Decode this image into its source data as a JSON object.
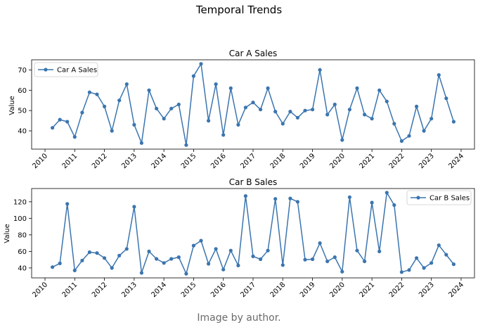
{
  "suptitle": "Temporal Trends",
  "caption": "Image by author.",
  "colors": {
    "line": "#3b75af",
    "axis": "#000000"
  },
  "chart_data": [
    {
      "type": "line",
      "title": "Car A Sales",
      "xlabel": "",
      "ylabel": "Value",
      "legend": "top-left",
      "grid": false,
      "x_ticks": [
        2010,
        2011,
        2012,
        2013,
        2014,
        2015,
        2016,
        2017,
        2018,
        2019,
        2020,
        2021,
        2022,
        2023,
        2024
      ],
      "y_ticks": [
        40,
        50,
        60,
        70
      ],
      "xlim": [
        2009.55,
        2024.45
      ],
      "ylim": [
        31,
        75
      ],
      "series": [
        {
          "name": "Car A Sales",
          "x": [
            2010.25,
            2010.5,
            2010.75,
            2011.0,
            2011.25,
            2011.5,
            2011.75,
            2012.0,
            2012.25,
            2012.5,
            2012.75,
            2013.0,
            2013.25,
            2013.5,
            2013.75,
            2014.0,
            2014.25,
            2014.5,
            2014.75,
            2015.0,
            2015.25,
            2015.5,
            2015.75,
            2016.0,
            2016.25,
            2016.5,
            2016.75,
            2017.0,
            2017.25,
            2017.5,
            2017.75,
            2018.0,
            2018.25,
            2018.5,
            2018.75,
            2019.0,
            2019.25,
            2019.5,
            2019.75,
            2020.0,
            2020.25,
            2020.5,
            2020.75,
            2021.0,
            2021.25,
            2021.5,
            2021.75,
            2022.0,
            2022.25,
            2022.5,
            2022.75,
            2023.0,
            2023.25,
            2023.5,
            2023.75
          ],
          "values": [
            41.5,
            45.5,
            44.5,
            37,
            49,
            59,
            58,
            52,
            40,
            55,
            63,
            43,
            34,
            60,
            51,
            46,
            51,
            53,
            33,
            67,
            73,
            45,
            63,
            38,
            61,
            43,
            51.5,
            54,
            50.5,
            61,
            49.5,
            43.5,
            49.5,
            46.5,
            50,
            50.5,
            70,
            48,
            53,
            35.5,
            50.5,
            61,
            48,
            46,
            60,
            54.5,
            43.5,
            35,
            37.5,
            52,
            40,
            46,
            67.5,
            56,
            44.5
          ]
        }
      ]
    },
    {
      "type": "line",
      "title": "Car B Sales",
      "xlabel": "",
      "ylabel": "Value",
      "legend": "top-right",
      "grid": false,
      "x_ticks": [
        2010,
        2011,
        2012,
        2013,
        2014,
        2015,
        2016,
        2017,
        2018,
        2019,
        2020,
        2021,
        2022,
        2023,
        2024
      ],
      "y_ticks": [
        40,
        60,
        80,
        100,
        120
      ],
      "xlim": [
        2009.55,
        2024.45
      ],
      "ylim": [
        28,
        136
      ],
      "series": [
        {
          "name": "Car B Sales",
          "x": [
            2010.25,
            2010.5,
            2010.75,
            2011.0,
            2011.25,
            2011.5,
            2011.75,
            2012.0,
            2012.25,
            2012.5,
            2012.75,
            2013.0,
            2013.25,
            2013.5,
            2013.75,
            2014.0,
            2014.25,
            2014.5,
            2014.75,
            2015.0,
            2015.25,
            2015.5,
            2015.75,
            2016.0,
            2016.25,
            2016.5,
            2016.75,
            2017.0,
            2017.25,
            2017.5,
            2017.75,
            2018.0,
            2018.25,
            2018.5,
            2018.75,
            2019.0,
            2019.25,
            2019.5,
            2019.75,
            2020.0,
            2020.25,
            2020.5,
            2020.75,
            2021.0,
            2021.25,
            2021.5,
            2021.75,
            2022.0,
            2022.25,
            2022.5,
            2022.75,
            2023.0,
            2023.25,
            2023.5,
            2023.75
          ],
          "values": [
            41,
            45.5,
            117.5,
            37,
            49,
            59,
            58,
            52,
            40,
            55,
            63,
            114,
            34,
            60,
            51,
            46,
            51,
            53,
            33,
            67,
            73,
            45,
            63,
            38,
            61,
            43,
            127,
            54,
            50.5,
            61,
            123.5,
            43.5,
            124,
            120,
            50,
            50.5,
            70,
            48,
            53,
            35.5,
            125.5,
            61,
            48,
            119,
            60,
            131,
            116,
            35,
            37.5,
            52,
            40,
            46,
            67.5,
            56,
            44.5
          ]
        }
      ]
    }
  ]
}
